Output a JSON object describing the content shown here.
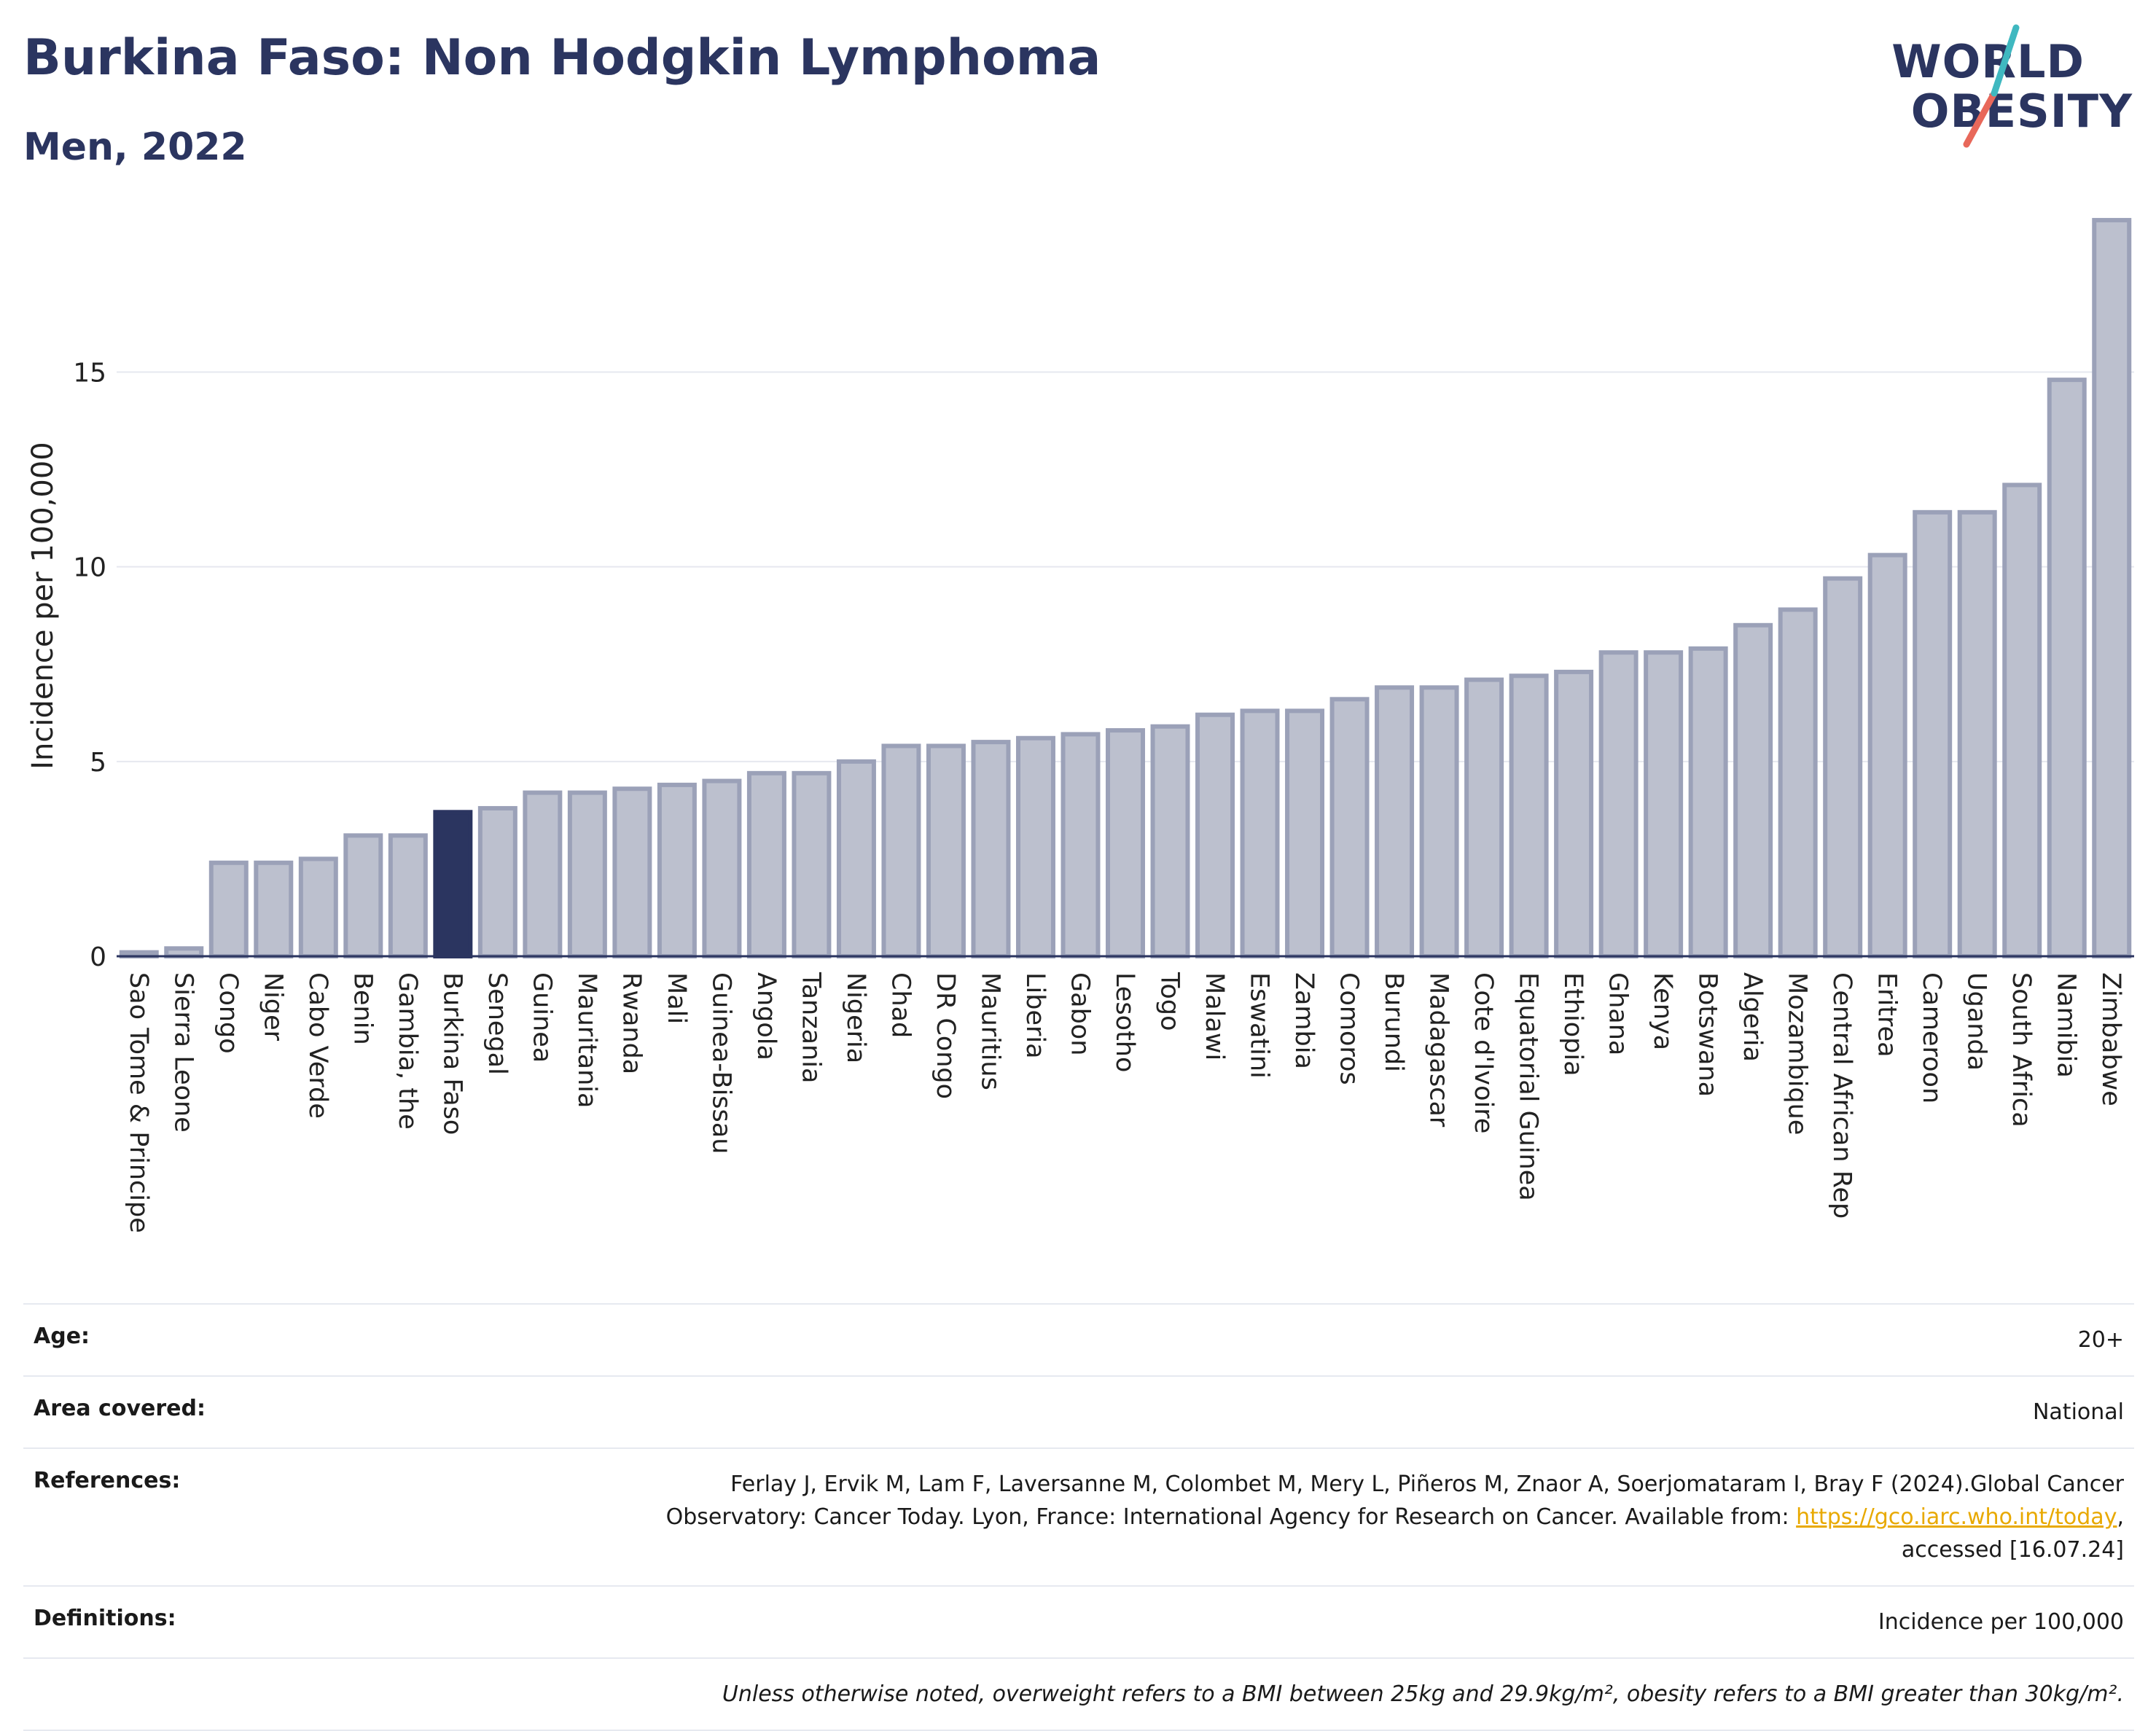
{
  "header": {
    "title": "Burkina Faso: Non Hodgkin Lymphoma",
    "subtitle": "Men, 2022"
  },
  "logo": {
    "line1": "WORLD",
    "line2": "OBESITY",
    "colors": {
      "text": "#2b3560",
      "slash_top": "#3fb8c0",
      "slash_bottom": "#e8685a"
    }
  },
  "chart_data": {
    "type": "bar",
    "ylabel": "Incidence per 100,000",
    "xlabel": "",
    "ylim": [
      0,
      19.5
    ],
    "yticks": [
      0,
      5,
      10,
      15
    ],
    "grid": true,
    "highlight": "Burkina Faso",
    "colors": {
      "bar": "#bcc0ce",
      "bar_stroke": "#9ba1b8",
      "highlight": "#2b3560",
      "grid": "#e6e8ef",
      "axis": "#2b3560"
    },
    "categories": [
      "Sao Tome & Principe",
      "Sierra Leone",
      "Congo",
      "Niger",
      "Cabo Verde",
      "Benin",
      "Gambia, the",
      "Burkina Faso",
      "Senegal",
      "Guinea",
      "Mauritania",
      "Rwanda",
      "Mali",
      "Guinea-Bissau",
      "Angola",
      "Tanzania",
      "Nigeria",
      "Chad",
      "DR Congo",
      "Mauritius",
      "Liberia",
      "Gabon",
      "Lesotho",
      "Togo",
      "Malawi",
      "Eswatini",
      "Zambia",
      "Comoros",
      "Burundi",
      "Madagascar",
      "Cote d'Ivoire",
      "Equatorial Guinea",
      "Ethiopia",
      "Ghana",
      "Kenya",
      "Botswana",
      "Algeria",
      "Mozambique",
      "Central African Rep",
      "Eritrea",
      "Cameroon",
      "Uganda",
      "South Africa",
      "Namibia",
      "Zimbabwe"
    ],
    "values": [
      0.1,
      0.2,
      2.4,
      2.4,
      2.5,
      3.1,
      3.1,
      3.7,
      3.8,
      4.2,
      4.2,
      4.3,
      4.4,
      4.5,
      4.7,
      4.7,
      5.0,
      5.4,
      5.4,
      5.5,
      5.6,
      5.7,
      5.8,
      5.9,
      6.2,
      6.3,
      6.3,
      6.6,
      6.9,
      6.9,
      7.1,
      7.2,
      7.3,
      7.8,
      7.8,
      7.9,
      8.5,
      8.9,
      9.7,
      10.3,
      11.4,
      11.4,
      12.1,
      14.8,
      18.9
    ]
  },
  "info": {
    "age_label": "Age:",
    "age_value": "20+",
    "area_label": "Area covered:",
    "area_value": "National",
    "references_label": "References:",
    "references_text_1": "Ferlay J, Ervik M, Lam F, Laversanne M, Colombet M, Mery L, Piñeros M, Znaor A, Soerjomataram I, Bray F (2024).Global Cancer",
    "references_text_2": "Observatory: Cancer Today. Lyon, France: International Agency for Research on Cancer. Available from: ",
    "references_link": "https://gco.iarc.who.int/today",
    "references_text_3": ",",
    "references_text_4": "accessed [16.07.24]",
    "definitions_label": "Definitions:",
    "definitions_value": "Incidence per 100,000",
    "footnote": "Unless otherwise noted, overweight refers to a BMI between 25kg and 29.9kg/m², obesity refers to a BMI greater than 30kg/m²."
  }
}
